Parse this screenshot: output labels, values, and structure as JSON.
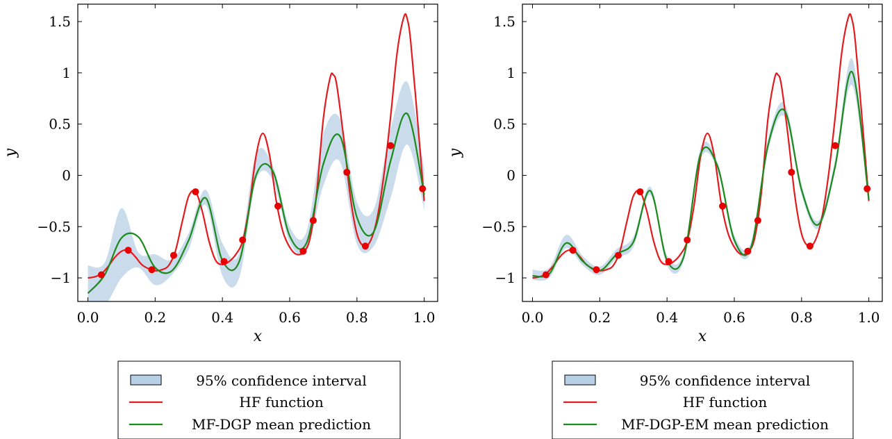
{
  "chart_data": [
    {
      "type": "line",
      "xlabel": "x",
      "ylabel": "y",
      "xlim": [
        -0.03,
        1.04
      ],
      "ylim": [
        -1.23,
        1.67
      ],
      "xticks": [
        0,
        0.2,
        0.4,
        0.6,
        0.8,
        1
      ],
      "xtick_labels": [
        "0.0",
        "0.2",
        "0.4",
        "0.6",
        "0.8",
        "1.0"
      ],
      "yticks": [
        -1,
        -0.5,
        0,
        0.5,
        1,
        1.5
      ],
      "ytick_labels": [
        "−1",
        "−0.5",
        "0",
        "0.5",
        "1",
        "1.5"
      ],
      "grid": false,
      "legend_position": "below",
      "legend_entries": [
        "95% confidence interval",
        "HF function",
        "MF-DGP mean prediction"
      ],
      "x": [
        0,
        0.05,
        0.1,
        0.15,
        0.2,
        0.25,
        0.3,
        0.35,
        0.4,
        0.45,
        0.5,
        0.55,
        0.6,
        0.65,
        0.7,
        0.75,
        0.8,
        0.85,
        0.9,
        0.95,
        1.0
      ],
      "series": [
        {
          "name": "HF function",
          "color": "#e41a1c",
          "x": [
            0,
            0.02,
            0.04,
            0.06,
            0.08,
            0.1,
            0.12,
            0.14,
            0.16,
            0.18,
            0.2,
            0.22,
            0.24,
            0.26,
            0.28,
            0.3,
            0.32,
            0.34,
            0.36,
            0.38,
            0.4,
            0.42,
            0.44,
            0.46,
            0.48,
            0.5,
            0.52,
            0.54,
            0.56,
            0.58,
            0.6,
            0.62,
            0.64,
            0.66,
            0.68,
            0.7,
            0.72,
            0.73,
            0.74,
            0.76,
            0.78,
            0.8,
            0.82,
            0.84,
            0.86,
            0.88,
            0.9,
            0.92,
            0.94,
            0.95,
            0.96,
            0.98,
            1.0
          ],
          "values": [
            -1.0,
            -0.99,
            -0.96,
            -0.89,
            -0.8,
            -0.74,
            -0.73,
            -0.79,
            -0.87,
            -0.91,
            -0.93,
            -0.92,
            -0.88,
            -0.74,
            -0.46,
            -0.2,
            -0.16,
            -0.35,
            -0.64,
            -0.83,
            -0.87,
            -0.84,
            -0.77,
            -0.64,
            -0.3,
            0.19,
            0.41,
            0.2,
            -0.25,
            -0.55,
            -0.7,
            -0.77,
            -0.75,
            -0.62,
            -0.18,
            0.55,
            0.95,
            0.98,
            0.88,
            0.38,
            -0.2,
            -0.57,
            -0.69,
            -0.64,
            -0.42,
            0.0,
            0.57,
            1.21,
            1.55,
            1.52,
            1.3,
            0.55,
            -0.25
          ]
        },
        {
          "name": "MF-DGP mean prediction",
          "color": "#1b8a1b",
          "values": [
            -1.15,
            -0.97,
            -0.61,
            -0.6,
            -0.9,
            -0.93,
            -0.63,
            -0.22,
            -0.83,
            -0.84,
            0.0,
            0.04,
            -0.59,
            -0.66,
            0.11,
            0.38,
            -0.41,
            -0.55,
            0.14,
            0.6,
            -0.19
          ]
        },
        {
          "name": "95% confidence interval",
          "color": "#b8d0e6",
          "lower": [
            -1.27,
            -1.27,
            -1.0,
            -0.9,
            -1.07,
            -0.97,
            -0.72,
            -0.29,
            -0.98,
            -1.0,
            -0.05,
            -0.05,
            -0.65,
            -0.74,
            -0.1,
            0.13,
            -0.67,
            -0.69,
            -0.22,
            0.3,
            -0.33
          ],
          "upper": [
            -0.88,
            -0.85,
            -0.32,
            -0.75,
            -0.77,
            -0.82,
            -0.56,
            -0.14,
            -0.66,
            -0.76,
            0.21,
            0.09,
            -0.5,
            -0.55,
            0.4,
            0.55,
            -0.26,
            -0.33,
            0.45,
            0.91,
            0.06
          ]
        }
      ],
      "points": {
        "name": "HF observations",
        "color": "#e60000",
        "x": [
          0.04,
          0.12,
          0.19,
          0.255,
          0.32,
          0.405,
          0.46,
          0.565,
          0.64,
          0.67,
          0.77,
          0.825,
          0.9,
          0.995
        ],
        "y": [
          -0.97,
          -0.73,
          -0.92,
          -0.78,
          -0.16,
          -0.84,
          -0.63,
          -0.3,
          -0.74,
          -0.44,
          0.03,
          -0.69,
          0.29,
          -0.13
        ]
      }
    },
    {
      "type": "line",
      "xlabel": "x",
      "ylabel": "y",
      "xlim": [
        -0.03,
        1.04
      ],
      "ylim": [
        -1.23,
        1.67
      ],
      "xticks": [
        0,
        0.2,
        0.4,
        0.6,
        0.8,
        1
      ],
      "xtick_labels": [
        "0.0",
        "0.2",
        "0.4",
        "0.6",
        "0.8",
        "1.0"
      ],
      "yticks": [
        -1,
        -0.5,
        0,
        0.5,
        1,
        1.5
      ],
      "ytick_labels": [
        "−1",
        "−0.5",
        "0",
        "0.5",
        "1",
        "1.5"
      ],
      "grid": false,
      "legend_position": "below",
      "legend_entries": [
        "95% confidence interval",
        "HF function",
        "MF-DGP-EM mean prediction"
      ],
      "x": [
        0,
        0.05,
        0.1,
        0.15,
        0.2,
        0.25,
        0.3,
        0.35,
        0.4,
        0.45,
        0.5,
        0.55,
        0.6,
        0.65,
        0.7,
        0.75,
        0.8,
        0.85,
        0.9,
        0.95,
        1.0
      ],
      "series": [
        {
          "name": "HF function",
          "color": "#e41a1c",
          "x": [
            0,
            0.02,
            0.04,
            0.06,
            0.08,
            0.1,
            0.12,
            0.14,
            0.16,
            0.18,
            0.2,
            0.22,
            0.24,
            0.26,
            0.28,
            0.3,
            0.32,
            0.34,
            0.36,
            0.38,
            0.4,
            0.42,
            0.44,
            0.46,
            0.48,
            0.5,
            0.52,
            0.54,
            0.56,
            0.58,
            0.6,
            0.62,
            0.64,
            0.66,
            0.68,
            0.7,
            0.72,
            0.73,
            0.74,
            0.76,
            0.78,
            0.8,
            0.82,
            0.84,
            0.86,
            0.88,
            0.9,
            0.92,
            0.94,
            0.95,
            0.96,
            0.98,
            1.0
          ],
          "values": [
            -1.0,
            -0.99,
            -0.96,
            -0.89,
            -0.8,
            -0.74,
            -0.73,
            -0.79,
            -0.87,
            -0.91,
            -0.93,
            -0.92,
            -0.88,
            -0.74,
            -0.46,
            -0.2,
            -0.16,
            -0.35,
            -0.64,
            -0.83,
            -0.87,
            -0.84,
            -0.77,
            -0.64,
            -0.3,
            0.19,
            0.41,
            0.2,
            -0.25,
            -0.55,
            -0.7,
            -0.77,
            -0.75,
            -0.62,
            -0.18,
            0.55,
            0.95,
            0.98,
            0.88,
            0.38,
            -0.2,
            -0.57,
            -0.69,
            -0.64,
            -0.42,
            0.0,
            0.57,
            1.21,
            1.55,
            1.52,
            1.3,
            0.55,
            -0.25
          ]
        },
        {
          "name": "MF-DGP-EM mean prediction",
          "color": "#1b8a1b",
          "values": [
            -0.98,
            -0.96,
            -0.66,
            -0.84,
            -0.93,
            -0.77,
            -0.65,
            -0.15,
            -0.83,
            -0.79,
            0.21,
            0.09,
            -0.63,
            -0.7,
            0.29,
            0.63,
            -0.14,
            -0.48,
            0.09,
            1.01,
            -0.24
          ]
        },
        {
          "name": "95% confidence interval",
          "color": "#b8d0e6",
          "lower": [
            -1.02,
            -1.0,
            -0.71,
            -0.88,
            -0.97,
            -0.81,
            -0.7,
            -0.19,
            -0.88,
            -0.83,
            0.16,
            0.05,
            -0.67,
            -0.74,
            0.23,
            0.57,
            -0.19,
            -0.52,
            0.04,
            0.88,
            -0.28
          ],
          "upper": [
            -0.92,
            -0.9,
            -0.58,
            -0.79,
            -0.89,
            -0.72,
            -0.6,
            -0.11,
            -0.78,
            -0.75,
            0.27,
            0.13,
            -0.58,
            -0.65,
            0.35,
            0.7,
            -0.09,
            -0.44,
            0.16,
            1.14,
            -0.18
          ]
        }
      ],
      "points": {
        "name": "HF observations",
        "color": "#e60000",
        "x": [
          0.04,
          0.12,
          0.19,
          0.255,
          0.32,
          0.405,
          0.46,
          0.565,
          0.64,
          0.67,
          0.77,
          0.825,
          0.9,
          0.995
        ],
        "y": [
          -0.97,
          -0.73,
          -0.92,
          -0.78,
          -0.16,
          -0.84,
          -0.63,
          -0.3,
          -0.74,
          -0.44,
          0.03,
          -0.69,
          0.29,
          -0.13
        ]
      }
    }
  ]
}
